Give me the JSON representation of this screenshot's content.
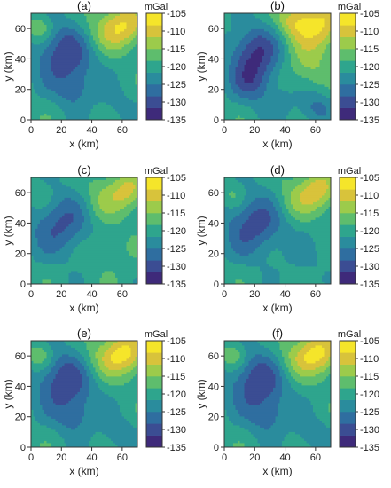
{
  "chart_data": {
    "type": "heatmap",
    "colors": [
      "#3e2a7a",
      "#3b4d93",
      "#2f6ea0",
      "#2a8c9d",
      "#2ea58d",
      "#5ebd6d",
      "#9ccb4b",
      "#d8c33b",
      "#f5e52a"
    ],
    "colorbar": {
      "unit": "mGal",
      "min": -135,
      "max": -105,
      "ticks": [
        "-105",
        "-110",
        "-115",
        "-120",
        "-125",
        "-130",
        "-135"
      ]
    },
    "x_ticks": [
      "0",
      "20",
      "40",
      "60"
    ],
    "y_ticks": [
      "0",
      "20",
      "40",
      "60"
    ],
    "xlim": [
      0,
      70
    ],
    "ylim": [
      0,
      70
    ],
    "xlabel": "x (km)",
    "ylabel": "y (km)",
    "panels": [
      {
        "title": "(a)",
        "blobs": [
          {
            "x": 22,
            "y": 44,
            "r": 14,
            "a": -11
          },
          {
            "x": 28,
            "y": 20,
            "r": 9,
            "a": -6
          },
          {
            "x": 62,
            "y": 62,
            "r": 10,
            "a": 11
          },
          {
            "x": 6,
            "y": 60,
            "r": 6,
            "a": 6
          },
          {
            "x": 45,
            "y": 58,
            "r": 10,
            "a": 5
          },
          {
            "x": 58,
            "y": 8,
            "r": 9,
            "a": -3
          }
        ]
      },
      {
        "title": "(b)",
        "blobs": [
          {
            "x": 20,
            "y": 45,
            "r": 12,
            "a": -11
          },
          {
            "x": 18,
            "y": 25,
            "r": 10,
            "a": -8
          },
          {
            "x": 62,
            "y": 62,
            "r": 12,
            "a": 12
          },
          {
            "x": 45,
            "y": 65,
            "r": 8,
            "a": 7
          },
          {
            "x": 55,
            "y": 35,
            "r": 10,
            "a": 5
          },
          {
            "x": 35,
            "y": 10,
            "r": 8,
            "a": -3
          },
          {
            "x": 60,
            "y": 8,
            "r": 8,
            "a": -6
          }
        ]
      },
      {
        "title": "(c)",
        "blobs": [
          {
            "x": 20,
            "y": 40,
            "r": 15,
            "a": -9
          },
          {
            "x": 64,
            "y": 62,
            "r": 9,
            "a": 9
          },
          {
            "x": 45,
            "y": 55,
            "r": 10,
            "a": 5
          },
          {
            "x": 6,
            "y": 58,
            "r": 6,
            "a": 3
          },
          {
            "x": 50,
            "y": 25,
            "r": 12,
            "a": 2
          }
        ]
      },
      {
        "title": "(d)",
        "blobs": [
          {
            "x": 20,
            "y": 40,
            "r": 15,
            "a": -10
          },
          {
            "x": 62,
            "y": 62,
            "r": 9,
            "a": 10
          },
          {
            "x": 45,
            "y": 55,
            "r": 10,
            "a": 5
          },
          {
            "x": 6,
            "y": 58,
            "r": 6,
            "a": 4
          },
          {
            "x": 55,
            "y": 15,
            "r": 10,
            "a": -2
          }
        ]
      },
      {
        "title": "(e)",
        "blobs": [
          {
            "x": 22,
            "y": 44,
            "r": 14,
            "a": -11
          },
          {
            "x": 28,
            "y": 20,
            "r": 9,
            "a": -6
          },
          {
            "x": 62,
            "y": 62,
            "r": 10,
            "a": 12
          },
          {
            "x": 6,
            "y": 60,
            "r": 6,
            "a": 6
          },
          {
            "x": 45,
            "y": 58,
            "r": 10,
            "a": 5
          },
          {
            "x": 58,
            "y": 8,
            "r": 9,
            "a": -4
          }
        ]
      },
      {
        "title": "(f)",
        "blobs": [
          {
            "x": 22,
            "y": 44,
            "r": 14,
            "a": -11
          },
          {
            "x": 28,
            "y": 20,
            "r": 9,
            "a": -6
          },
          {
            "x": 62,
            "y": 62,
            "r": 10,
            "a": 12
          },
          {
            "x": 6,
            "y": 60,
            "r": 6,
            "a": 6
          },
          {
            "x": 45,
            "y": 58,
            "r": 10,
            "a": 5
          },
          {
            "x": 58,
            "y": 8,
            "r": 9,
            "a": -4
          }
        ]
      }
    ]
  }
}
